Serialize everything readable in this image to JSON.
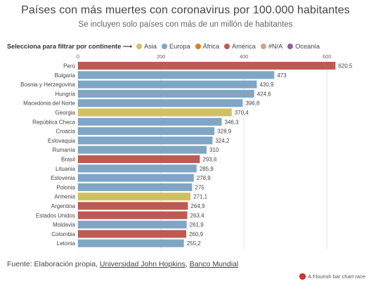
{
  "title": "Países con más muertes con coronavirus por 100.000 habitantes",
  "subtitle": "Se incluyen solo países con más de un millón de habitantes",
  "filter": {
    "label": "Selecciona para filtrar por continente ⟶",
    "options": [
      {
        "name": "Asia",
        "color": "#cfc160"
      },
      {
        "name": "Europa",
        "color": "#7fa6c4"
      },
      {
        "name": "África",
        "color": "#d4802a"
      },
      {
        "name": "América",
        "color": "#bd5a52"
      },
      {
        "name": "#N/A",
        "color": "#c9a494"
      },
      {
        "name": "Oceanía",
        "color": "#8a6496"
      }
    ]
  },
  "footer": {
    "prefix": "Fuente: Elaboración propia, ",
    "link1": "Universidad John Hopkins",
    "sep": ", ",
    "link2": "Banco Mundial"
  },
  "credit": "A Flourish bar chart race",
  "chart_data": {
    "type": "bar",
    "orientation": "horizontal",
    "xlim": [
      0,
      635
    ],
    "ticks": [
      0,
      200,
      400,
      600
    ],
    "categories": [
      "Perú",
      "Bulgaria",
      "Bosnia y Herzegovina",
      "Hungría",
      "Macedonia del Norte",
      "Georgia",
      "República Checa",
      "Croacia",
      "Eslovaquia",
      "Rumanía",
      "Brasil",
      "Lituania",
      "Eslovenia",
      "Polonia",
      "Armenia",
      "Argentina",
      "Estados Unidos",
      "Moldavia",
      "Colombia",
      "Letonia"
    ],
    "values": [
      620.5,
      473,
      430.9,
      424.6,
      396.8,
      370.4,
      346.3,
      328.9,
      324.2,
      310,
      293.6,
      285.9,
      278.9,
      275,
      271.1,
      264.9,
      263.4,
      261.9,
      260.9,
      255.2
    ],
    "value_labels": [
      "620,5",
      "473",
      "430,9",
      "424,6",
      "396,8",
      "370,4",
      "346,3",
      "328,9",
      "324,2",
      "310",
      "293,6",
      "285,9",
      "278,9",
      "275",
      "271,1",
      "264,9",
      "263,4",
      "261,9",
      "260,9",
      "255,2"
    ],
    "continents": [
      "América",
      "Europa",
      "Europa",
      "Europa",
      "Europa",
      "Asia",
      "Europa",
      "Europa",
      "Europa",
      "Europa",
      "América",
      "Europa",
      "Europa",
      "Europa",
      "Asia",
      "América",
      "América",
      "Europa",
      "América",
      "Europa"
    ],
    "grid": true
  }
}
